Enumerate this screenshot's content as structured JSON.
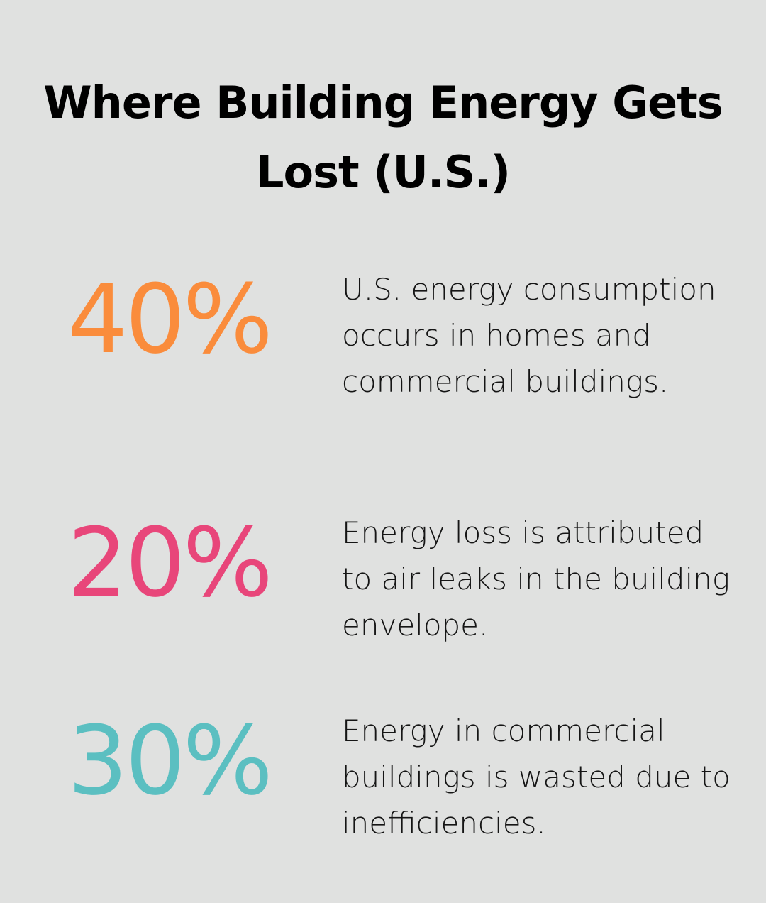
{
  "title": "Where Building Energy Gets Lost (U.S.)",
  "stats": [
    {
      "value": "40%",
      "color": "#fa8c3c",
      "description": "U.S. energy consumption occurs in homes and commercial buildings."
    },
    {
      "value": "20%",
      "color": "#e8467a",
      "description": "Energy loss is attributed to air leaks in the building envelope."
    },
    {
      "value": "30%",
      "color": "#5bbfc1",
      "description": "Energy in commercial buildings is wasted due to inefficiencies."
    }
  ]
}
